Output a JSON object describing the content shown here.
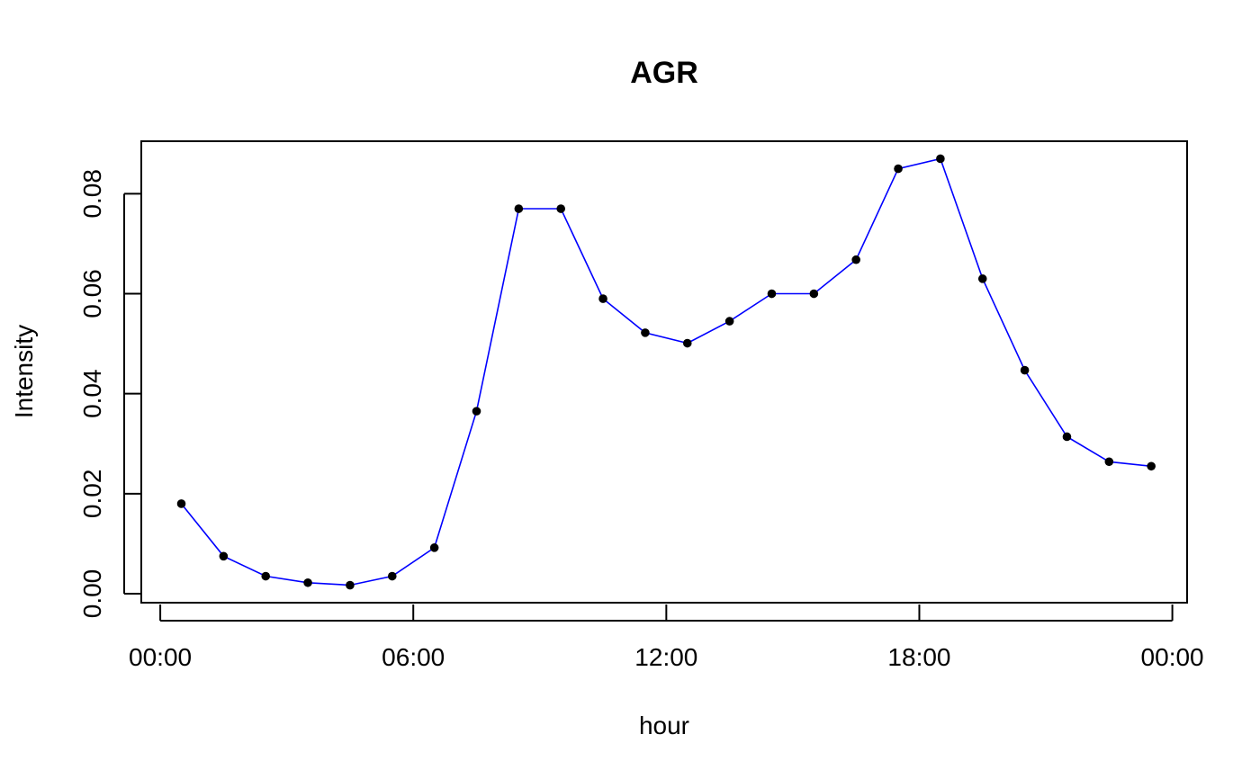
{
  "chart_data": {
    "type": "line",
    "title": "AGR",
    "xlabel": "hour",
    "ylabel": "Intensity",
    "x_ticks": [
      "00:00",
      "06:00",
      "12:00",
      "18:00",
      "00:00"
    ],
    "x_tick_hours": [
      0,
      6,
      12,
      18,
      24
    ],
    "y_ticks": [
      "0.00",
      "0.02",
      "0.04",
      "0.06",
      "0.08"
    ],
    "y_tick_values": [
      0.0,
      0.02,
      0.04,
      0.06,
      0.08
    ],
    "xlim": [
      -0.45,
      24.35
    ],
    "ylim": [
      -0.0018,
      0.0905
    ],
    "grid": false,
    "series": [
      {
        "line_color": "#0000ff",
        "point_color": "#000000",
        "x": [
          0.5,
          1.5,
          2.5,
          3.5,
          4.5,
          5.5,
          6.5,
          7.5,
          8.5,
          9.5,
          10.5,
          11.5,
          12.5,
          13.5,
          14.5,
          15.5,
          16.5,
          17.5,
          18.5,
          19.5,
          20.5,
          21.5,
          22.5,
          23.5
        ],
        "values": [
          0.018,
          0.0075,
          0.0035,
          0.0022,
          0.0017,
          0.0035,
          0.0092,
          0.0365,
          0.077,
          0.077,
          0.059,
          0.0522,
          0.0501,
          0.0545,
          0.06,
          0.06,
          0.0668,
          0.085,
          0.087,
          0.063,
          0.0447,
          0.0314,
          0.0264,
          0.0255
        ]
      }
    ]
  }
}
